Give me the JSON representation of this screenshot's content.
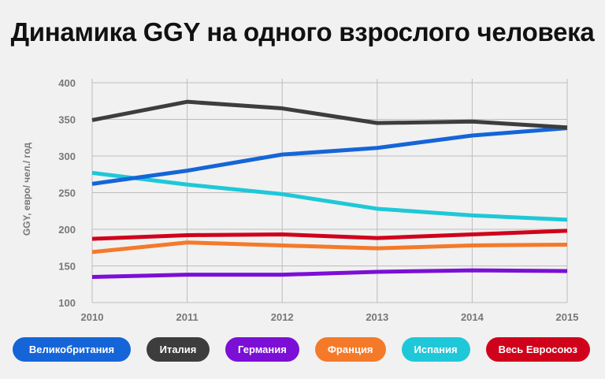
{
  "chart_data": {
    "type": "line",
    "title": "Динамика GGY на одного взрослого человека",
    "xlabel": "",
    "ylabel": "GGY, евро/ чел./ год",
    "x": [
      2010,
      2011,
      2012,
      2013,
      2014,
      2015
    ],
    "ylim": [
      100,
      400
    ],
    "yticks": [
      100,
      150,
      200,
      250,
      300,
      350,
      400
    ],
    "grid": true,
    "legend_position": "bottom",
    "series": [
      {
        "name": "Великобритания",
        "color": "#1565d8",
        "values": [
          262,
          280,
          302,
          311,
          328,
          338
        ]
      },
      {
        "name": "Италия",
        "color": "#3d3d3d",
        "values": [
          349,
          374,
          365,
          345,
          347,
          339
        ]
      },
      {
        "name": "Германия",
        "color": "#7b0fd6",
        "values": [
          135,
          138,
          138,
          142,
          144,
          143
        ]
      },
      {
        "name": "Франция",
        "color": "#f47a2a",
        "values": [
          169,
          182,
          178,
          174,
          178,
          179
        ]
      },
      {
        "name": "Испания",
        "color": "#1ec8d8",
        "values": [
          277,
          261,
          248,
          228,
          219,
          213
        ]
      },
      {
        "name": "Весь Евросоюз",
        "color": "#d0021b",
        "values": [
          187,
          192,
          193,
          188,
          193,
          198
        ]
      }
    ]
  }
}
